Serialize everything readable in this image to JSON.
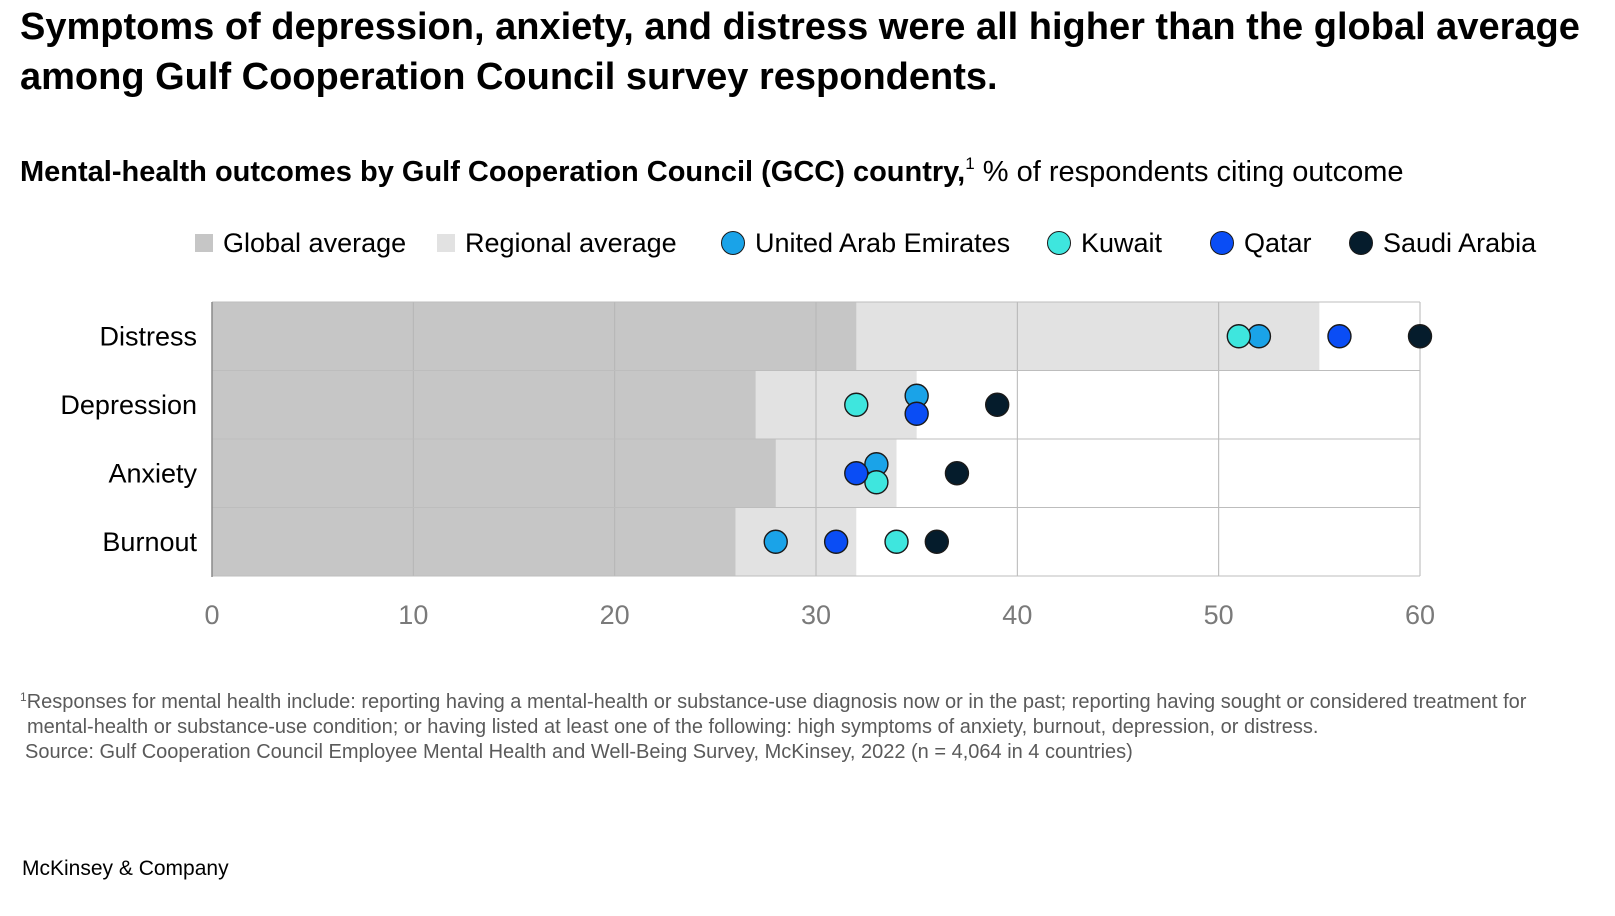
{
  "title": "Symptoms of depression, anxiety, and distress were all higher than the global average among Gulf Cooperation Council survey respondents.",
  "subtitle_bold": "Mental-health outcomes by Gulf Cooperation Council (GCC) country,",
  "subtitle_sup": "1",
  "subtitle_rest": " % of respondents citing outcome",
  "legend": [
    {
      "label": "Global average",
      "kind": "square",
      "color": "#c6c6c6"
    },
    {
      "label": "Regional average",
      "kind": "square",
      "color": "#e2e2e2"
    },
    {
      "label": "United Arab Emirates",
      "kind": "dot",
      "color": "#1aa3e8"
    },
    {
      "label": "Kuwait",
      "kind": "dot",
      "color": "#3ee6de"
    },
    {
      "label": "Qatar",
      "kind": "dot",
      "color": "#0a4df5"
    },
    {
      "label": "Saudi Arabia",
      "kind": "dot",
      "color": "#051c2c"
    }
  ],
  "chart_data": {
    "type": "scatter",
    "categories": [
      "Distress",
      "Depression",
      "Anxiety",
      "Burnout"
    ],
    "global_average": [
      32,
      27,
      28,
      26
    ],
    "regional_average": [
      55,
      35,
      34,
      32
    ],
    "series": [
      {
        "name": "United Arab Emirates",
        "color": "#1aa3e8",
        "values": [
          52,
          35,
          33,
          28
        ]
      },
      {
        "name": "Kuwait",
        "color": "#3ee6de",
        "values": [
          51,
          32,
          33,
          34
        ]
      },
      {
        "name": "Qatar",
        "color": "#0a4df5",
        "values": [
          56,
          35,
          32,
          31
        ]
      },
      {
        "name": "Saudi Arabia",
        "color": "#051c2c",
        "values": [
          60,
          39,
          37,
          36
        ]
      }
    ],
    "xlim": [
      0,
      60
    ],
    "xticks": [
      "0",
      "10",
      "20",
      "30",
      "40",
      "50",
      "60"
    ],
    "grid": true
  },
  "footnote_marker": "1",
  "footnote_text": "Responses for mental health include: reporting having a mental-health or substance-use diagnosis now or in the past; reporting having sought or considered treatment for mental-health or substance-use condition; or having listed at least one of the following: high symptoms of anxiety, burnout, depression, or distress.",
  "source": "Source: Gulf Cooperation Council Employee Mental Health and Well-Being Survey, McKinsey, 2022 (n = 4,064 in 4 countries)",
  "brand": "McKinsey & Company"
}
